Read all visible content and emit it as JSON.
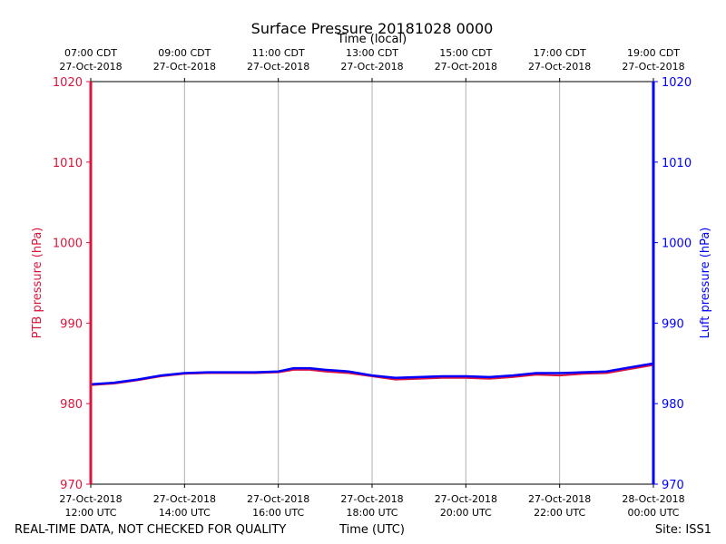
{
  "chart_data": {
    "type": "line",
    "title": "Surface Pressure 20181028 0000",
    "top_xlabel": "Time (local)",
    "xlabel": "Time (UTC)",
    "ylabel_left": "PTB pressure (hPa)",
    "ylabel_right": "Luft pressure (hPa)",
    "ylim": [
      970,
      1020
    ],
    "yticks": [
      970,
      980,
      990,
      1000,
      1010,
      1020
    ],
    "xlim_hours": [
      12,
      24
    ],
    "grid": "vertical",
    "bottom_ticks": [
      {
        "hour": 12,
        "date": "27-Oct-2018",
        "time": "12:00 UTC"
      },
      {
        "hour": 14,
        "date": "27-Oct-2018",
        "time": "14:00 UTC"
      },
      {
        "hour": 16,
        "date": "27-Oct-2018",
        "time": "16:00 UTC"
      },
      {
        "hour": 18,
        "date": "27-Oct-2018",
        "time": "18:00 UTC"
      },
      {
        "hour": 20,
        "date": "27-Oct-2018",
        "time": "20:00 UTC"
      },
      {
        "hour": 22,
        "date": "27-Oct-2018",
        "time": "22:00 UTC"
      },
      {
        "hour": 24,
        "date": "28-Oct-2018",
        "time": "00:00 UTC"
      }
    ],
    "top_ticks": [
      {
        "hour": 12,
        "time": "07:00 CDT",
        "date": "27-Oct-2018"
      },
      {
        "hour": 14,
        "time": "09:00 CDT",
        "date": "27-Oct-2018"
      },
      {
        "hour": 16,
        "time": "11:00 CDT",
        "date": "27-Oct-2018"
      },
      {
        "hour": 18,
        "time": "13:00 CDT",
        "date": "27-Oct-2018"
      },
      {
        "hour": 20,
        "time": "15:00 CDT",
        "date": "27-Oct-2018"
      },
      {
        "hour": 22,
        "time": "17:00 CDT",
        "date": "27-Oct-2018"
      },
      {
        "hour": 24,
        "time": "19:00 CDT",
        "date": "27-Oct-2018"
      }
    ],
    "x": [
      12.0,
      12.5,
      13.0,
      13.5,
      14.0,
      14.5,
      15.0,
      15.5,
      16.0,
      16.33,
      16.67,
      17.0,
      17.5,
      18.0,
      18.5,
      19.0,
      19.5,
      20.0,
      20.5,
      21.0,
      21.5,
      22.0,
      22.5,
      23.0,
      23.5,
      24.0
    ],
    "series": [
      {
        "name": "PTB pressure (hPa)",
        "color": "#dc143c",
        "values": [
          982.3,
          982.5,
          982.9,
          983.4,
          983.7,
          983.8,
          983.8,
          983.8,
          983.9,
          984.2,
          984.2,
          984.0,
          983.8,
          983.4,
          983.0,
          983.1,
          983.2,
          983.2,
          983.1,
          983.3,
          983.6,
          983.5,
          983.7,
          983.8,
          984.3,
          984.8
        ]
      },
      {
        "name": "Luft pressure (hPa)",
        "color": "#0000ff",
        "values": [
          982.4,
          982.6,
          983.0,
          983.5,
          983.8,
          983.9,
          983.9,
          983.9,
          984.0,
          984.4,
          984.4,
          984.2,
          984.0,
          983.5,
          983.2,
          983.3,
          983.4,
          983.4,
          983.3,
          983.5,
          983.8,
          983.8,
          983.9,
          984.0,
          984.5,
          985.0
        ]
      }
    ]
  },
  "footer": {
    "disclaimer": "REAL-TIME DATA, NOT CHECKED FOR QUALITY",
    "site": "Site: ISS1"
  }
}
